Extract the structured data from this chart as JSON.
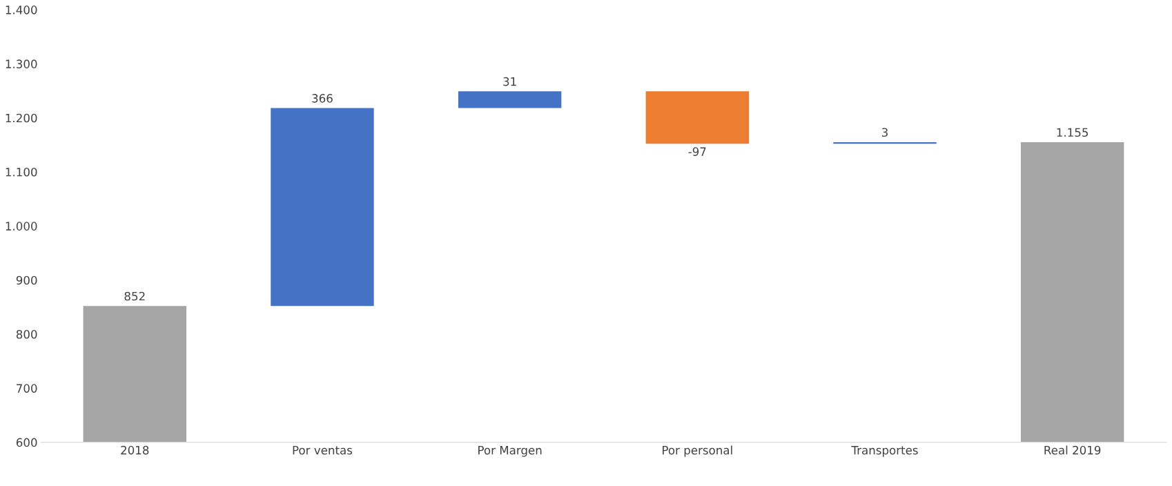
{
  "chart_data": {
    "type": "bar",
    "categories": [
      "2018",
      "Por ventas",
      "Por Margen",
      "Por personal",
      "Transportes",
      "Real 2019"
    ],
    "values": [
      852,
      366,
      31,
      -97,
      3,
      1155
    ],
    "base": [
      null,
      852,
      1218,
      1249,
      1152,
      null
    ],
    "colors": [
      "#a5a5a5",
      "#4472c4",
      "#4472c4",
      "#ed7d31",
      "#4472c4",
      "#a5a5a5"
    ],
    "value_labels": [
      "852",
      "366",
      "31",
      "-97",
      "3",
      "1.155"
    ],
    "ylim": [
      600,
      1400
    ],
    "yticks": [
      {
        "value": 600,
        "label": "600"
      },
      {
        "value": 700,
        "label": "700"
      },
      {
        "value": 800,
        "label": "800"
      },
      {
        "value": 900,
        "label": "900"
      },
      {
        "value": 1000,
        "label": "1.000"
      },
      {
        "value": 1100,
        "label": "1.100"
      },
      {
        "value": 1200,
        "label": "1.200"
      },
      {
        "value": 1300,
        "label": "1.300"
      },
      {
        "value": 1400,
        "label": "1.400"
      }
    ],
    "grid": false,
    "legend": false
  }
}
